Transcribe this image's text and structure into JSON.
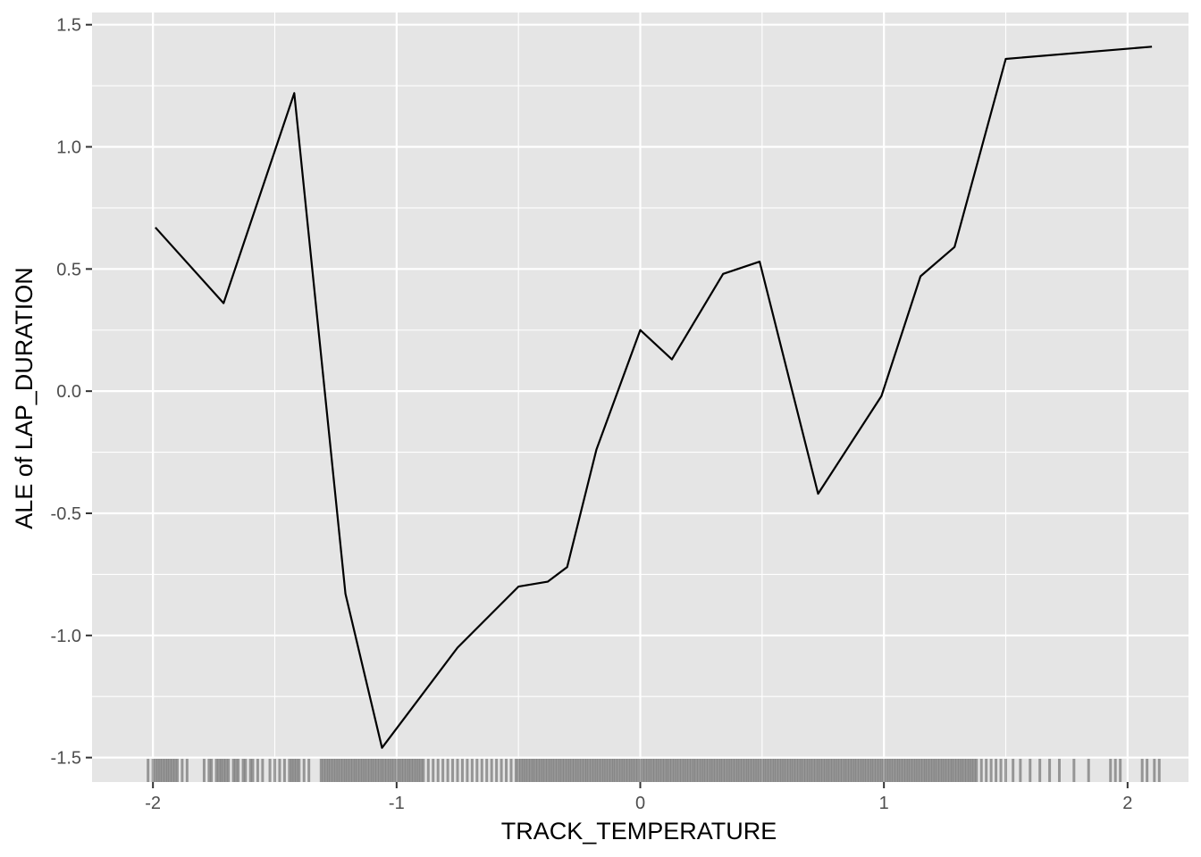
{
  "chart_data": {
    "type": "line",
    "title": "",
    "xlabel": "TRACK_TEMPERATURE",
    "ylabel": "ALE of LAP_DURATION",
    "xlim": [
      -2.25,
      2.25
    ],
    "ylim": [
      -1.6,
      1.55
    ],
    "x_ticks": [
      -2,
      -1,
      0,
      1,
      2
    ],
    "x_tick_labels": [
      "-2",
      "-1",
      "0",
      "1",
      "2"
    ],
    "y_ticks": [
      -1.5,
      -1.0,
      -0.5,
      0.0,
      0.5,
      1.0,
      1.5
    ],
    "y_tick_labels": [
      "-1.5",
      "-1.0",
      "-0.5",
      "0.0",
      "0.5",
      "1.0",
      "1.5"
    ],
    "grid": true,
    "legend": "none",
    "colors": {
      "panel": "#e5e5e5",
      "grid": "#ffffff",
      "line": "#000000",
      "tick_text": "#4d4d4d"
    },
    "series": [
      {
        "x": [
          -1.99,
          -1.71,
          -1.42,
          -1.21,
          -1.06,
          -0.75,
          -0.5,
          -0.38,
          -0.3,
          -0.18,
          0.0,
          0.13,
          0.34,
          0.49,
          0.73,
          0.99,
          1.15,
          1.29,
          1.5,
          2.1
        ],
        "y": [
          0.67,
          0.36,
          1.22,
          -0.83,
          -1.46,
          -1.05,
          -0.8,
          -0.78,
          -0.72,
          -0.24,
          0.25,
          0.13,
          0.48,
          0.53,
          -0.42,
          -0.02,
          0.47,
          0.59,
          1.36,
          1.41
        ]
      }
    ],
    "rug": {
      "description_ranges": [
        [
          -2.02,
          -1.85
        ],
        [
          -1.8,
          -1.35
        ],
        [
          -1.32,
          1.85
        ],
        [
          1.92,
          2.0
        ],
        [
          2.05,
          2.15
        ]
      ],
      "positions": [
        -2.02,
        -2.0,
        -1.99,
        -1.98,
        -1.97,
        -1.96,
        -1.95,
        -1.94,
        -1.93,
        -1.92,
        -1.91,
        -1.9,
        -1.88,
        -1.86,
        -1.79,
        -1.77,
        -1.76,
        -1.74,
        -1.73,
        -1.72,
        -1.71,
        -1.7,
        -1.69,
        -1.67,
        -1.66,
        -1.65,
        -1.63,
        -1.62,
        -1.6,
        -1.59,
        -1.57,
        -1.55,
        -1.52,
        -1.5,
        -1.48,
        -1.46,
        -1.44,
        -1.43,
        -1.42,
        -1.41,
        -1.4,
        -1.38,
        -1.36,
        -1.31,
        -1.3,
        -1.29,
        -1.28,
        -1.27,
        -1.26,
        -1.25,
        -1.24,
        -1.23,
        -1.22,
        -1.21,
        -1.2,
        -1.19,
        -1.18,
        -1.17,
        -1.16,
        -1.15,
        -1.14,
        -1.13,
        -1.12,
        -1.11,
        -1.1,
        -1.09,
        -1.08,
        -1.07,
        -1.06,
        -1.05,
        -1.04,
        -1.03,
        -1.02,
        -1.01,
        -1.0,
        -0.99,
        -0.98,
        -0.97,
        -0.96,
        -0.95,
        -0.94,
        -0.93,
        -0.92,
        -0.91,
        -0.9,
        -0.89,
        -0.87,
        -0.85,
        -0.83,
        -0.81,
        -0.79,
        -0.77,
        -0.75,
        -0.73,
        -0.71,
        -0.69,
        -0.67,
        -0.65,
        -0.63,
        -0.61,
        -0.59,
        -0.57,
        -0.55,
        -0.53,
        -0.51,
        -0.5,
        -0.49,
        -0.48,
        -0.47,
        -0.46,
        -0.45,
        -0.44,
        -0.43,
        -0.42,
        -0.41,
        -0.4,
        -0.39,
        -0.38,
        -0.37,
        -0.36,
        -0.35,
        -0.34,
        -0.33,
        -0.32,
        -0.31,
        -0.3,
        -0.29,
        -0.28,
        -0.27,
        -0.26,
        -0.25,
        -0.24,
        -0.23,
        -0.22,
        -0.21,
        -0.2,
        -0.19,
        -0.18,
        -0.17,
        -0.16,
        -0.15,
        -0.14,
        -0.13,
        -0.12,
        -0.11,
        -0.1,
        -0.09,
        -0.08,
        -0.07,
        -0.06,
        -0.05,
        -0.04,
        -0.03,
        -0.02,
        -0.01,
        0.0,
        0.01,
        0.02,
        0.03,
        0.04,
        0.05,
        0.06,
        0.07,
        0.08,
        0.09,
        0.1,
        0.11,
        0.12,
        0.13,
        0.14,
        0.15,
        0.16,
        0.17,
        0.18,
        0.19,
        0.2,
        0.21,
        0.22,
        0.23,
        0.24,
        0.25,
        0.26,
        0.27,
        0.28,
        0.29,
        0.3,
        0.31,
        0.32,
        0.33,
        0.34,
        0.35,
        0.36,
        0.37,
        0.38,
        0.39,
        0.4,
        0.41,
        0.42,
        0.43,
        0.44,
        0.45,
        0.46,
        0.47,
        0.48,
        0.49,
        0.5,
        0.51,
        0.52,
        0.53,
        0.54,
        0.55,
        0.56,
        0.57,
        0.58,
        0.59,
        0.6,
        0.61,
        0.62,
        0.63,
        0.64,
        0.65,
        0.66,
        0.67,
        0.68,
        0.69,
        0.7,
        0.71,
        0.72,
        0.73,
        0.74,
        0.75,
        0.76,
        0.77,
        0.78,
        0.79,
        0.8,
        0.81,
        0.82,
        0.83,
        0.84,
        0.85,
        0.86,
        0.87,
        0.88,
        0.89,
        0.9,
        0.91,
        0.92,
        0.93,
        0.94,
        0.95,
        0.96,
        0.97,
        0.98,
        0.99,
        1.0,
        1.01,
        1.02,
        1.03,
        1.04,
        1.05,
        1.06,
        1.07,
        1.08,
        1.09,
        1.1,
        1.11,
        1.12,
        1.13,
        1.14,
        1.15,
        1.16,
        1.17,
        1.18,
        1.19,
        1.2,
        1.21,
        1.22,
        1.23,
        1.24,
        1.25,
        1.26,
        1.27,
        1.28,
        1.29,
        1.3,
        1.31,
        1.32,
        1.33,
        1.34,
        1.35,
        1.36,
        1.37,
        1.38,
        1.4,
        1.42,
        1.44,
        1.46,
        1.48,
        1.5,
        1.53,
        1.56,
        1.6,
        1.64,
        1.68,
        1.72,
        1.78,
        1.84,
        1.93,
        1.95,
        1.97,
        2.06,
        2.08,
        2.11,
        2.13
      ]
    }
  }
}
